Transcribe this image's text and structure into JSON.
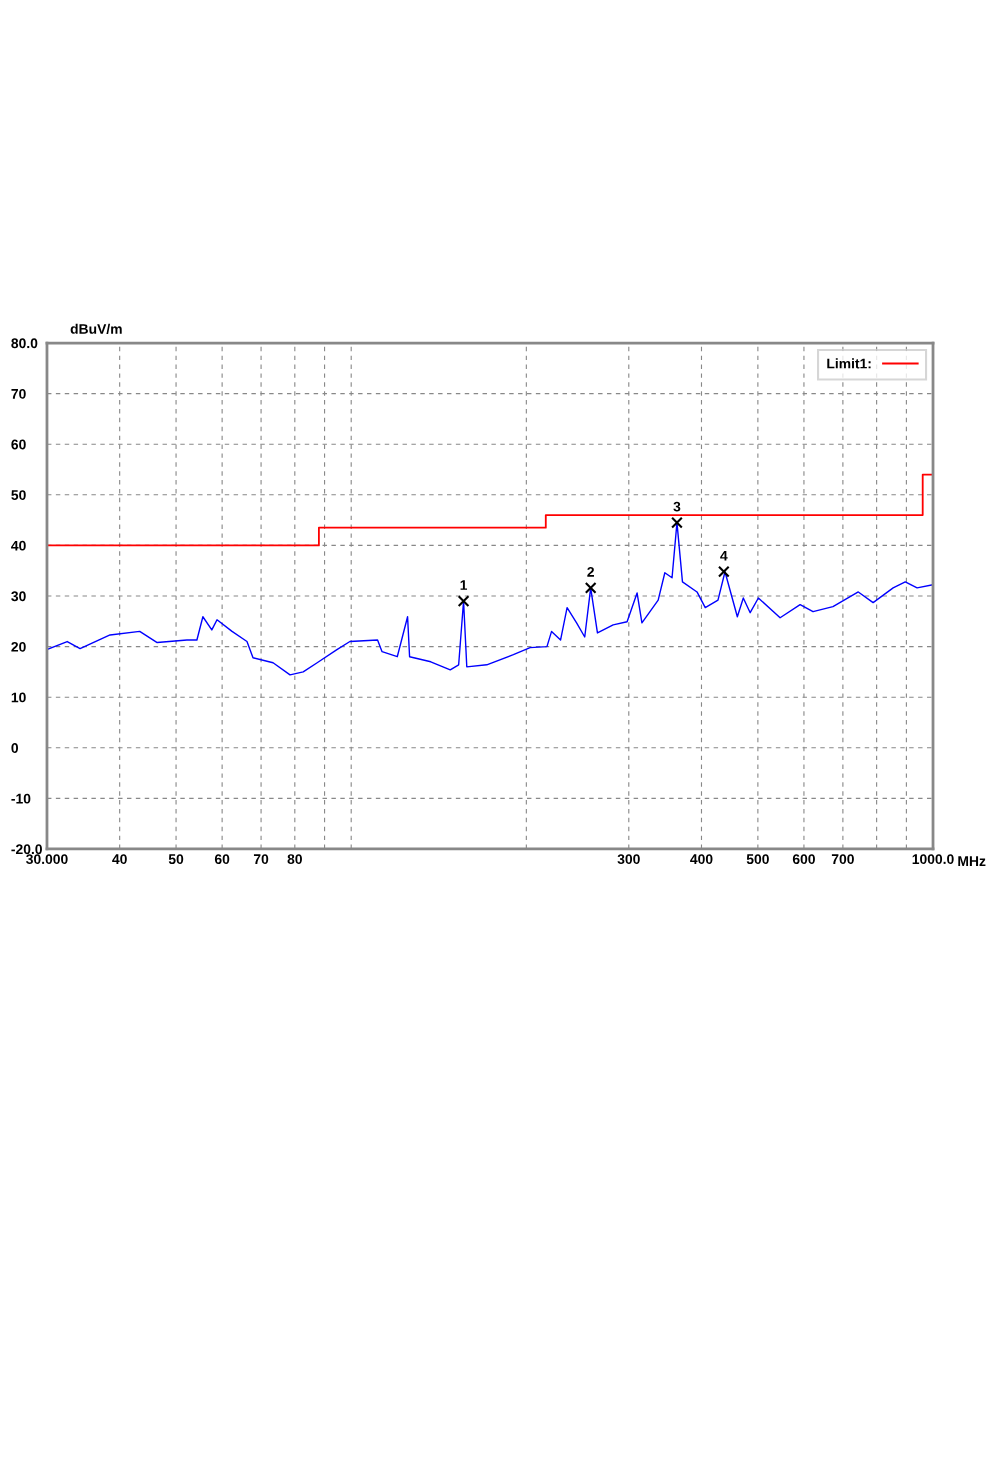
{
  "chart_data": {
    "type": "line",
    "xlabel": "MHz",
    "ylabel": "dBuV/m",
    "log": "x",
    "grid": true,
    "legend": "top right",
    "xlim": [
      30,
      1000
    ],
    "ylim": [
      -20,
      80
    ],
    "xticks": [
      {
        "value": 30,
        "label": "30.000"
      },
      40,
      50,
      60,
      70,
      80,
      {
        "value": 90,
        "label": null
      },
      {
        "value": 100,
        "label": null
      },
      {
        "value": 200,
        "label": null
      },
      300,
      400,
      500,
      600,
      700,
      {
        "value": 800,
        "label": null
      },
      {
        "value": 900,
        "label": null
      },
      {
        "value": 1000,
        "label": "1000.0"
      }
    ],
    "yticks": [
      {
        "value": -20,
        "label": "-20.0"
      },
      -10,
      0,
      10,
      20,
      30,
      40,
      50,
      60,
      70,
      {
        "value": 80,
        "label": "80.0"
      }
    ],
    "series": [
      {
        "color": "#0000ff",
        "x": [
          30,
          32.5,
          34.2,
          38.5,
          43.3,
          46.4,
          52.2,
          54.3,
          55.6,
          57.6,
          58.8,
          62.4,
          66.2,
          67.8,
          73.4,
          78.5,
          82.7,
          87.4,
          94.5,
          99.5,
          111,
          113,
          120,
          125,
          126,
          137,
          148,
          153,
          156,
          158,
          171,
          190,
          203,
          217,
          221,
          229,
          235,
          244,
          252,
          258,
          265,
          282,
          298,
          310,
          316,
          337,
          346,
          356,
          363,
          371,
          393,
          406,
          427,
          439,
          461,
          472,
          485,
          501,
          546,
          591,
          622,
          673,
          744,
          789,
          854,
          896,
          939,
          997
        ],
        "values": [
          19.4,
          21,
          19.6,
          22.3,
          23,
          20.8,
          21.3,
          21.3,
          25.9,
          23.3,
          25.3,
          23,
          21,
          17.8,
          16.8,
          14.4,
          15,
          16.8,
          19.4,
          21,
          21.3,
          19,
          18,
          25.9,
          18,
          17,
          15.4,
          16.4,
          29,
          16,
          16.4,
          18.4,
          19.8,
          20,
          23,
          21.3,
          27.7,
          24.7,
          21.9,
          31.6,
          22.7,
          24.3,
          24.9,
          30.6,
          24.7,
          29.2,
          34.6,
          33.6,
          44.5,
          32.8,
          30.8,
          27.7,
          29.2,
          34.8,
          25.9,
          29.6,
          26.7,
          29.6,
          25.7,
          28.3,
          26.9,
          27.9,
          30.8,
          28.7,
          31.6,
          32.8,
          31.6,
          32.2
        ]
      },
      {
        "type": "step",
        "name": "Limit1:",
        "color": "#ff0000",
        "x": [
          30,
          88,
          216,
          960,
          1000
        ],
        "values": [
          40,
          43.5,
          46,
          54,
          54
        ]
      }
    ],
    "annotations": [
      {
        "text": "1",
        "x": 156,
        "y": 29
      },
      {
        "text": "2",
        "x": 258,
        "y": 31.6
      },
      {
        "text": "3",
        "x": 363,
        "y": 44.5
      },
      {
        "text": "4",
        "x": 437,
        "y": 34.8
      }
    ]
  }
}
